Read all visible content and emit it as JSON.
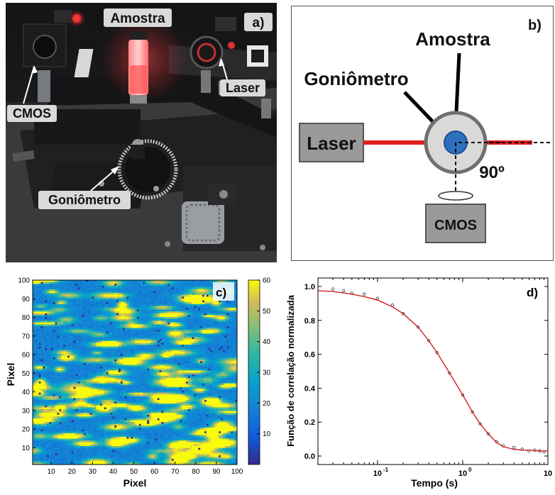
{
  "panels": {
    "a": {
      "letter": "a)",
      "labels": {
        "sample": "Amostra",
        "laser": "Laser",
        "camera": "CMOS",
        "goniometer": "Goniômetro"
      }
    },
    "b": {
      "letter": "b)",
      "labels": {
        "sample": "Amostra",
        "goniometer": "Goniômetro",
        "laser": "Laser",
        "angle": "90º",
        "camera": "CMOS"
      },
      "colors": {
        "beam": "#e02020",
        "sample": "#2e6fbf",
        "box_fill": "#9a9a9a"
      }
    },
    "c": {
      "letter": "c)",
      "xlabel": "Pixel",
      "ylabel": "Pixel",
      "x_ticks": [
        "10",
        "20",
        "30",
        "40",
        "50",
        "60",
        "70",
        "80",
        "90",
        "100"
      ],
      "y_ticks": [
        "10",
        "20",
        "30",
        "40",
        "50",
        "60",
        "70",
        "80",
        "90",
        "100"
      ],
      "colorbar_ticks": [
        "10",
        "20",
        "30",
        "40",
        "50",
        "60"
      ],
      "colormap": "parula"
    },
    "d": {
      "letter": "d)",
      "xlabel": "Tempo (s)",
      "ylabel": "Função de correlação normalizada",
      "x_ticks": [
        "10",
        "10",
        "10"
      ],
      "x_tick_exponents": [
        "-1",
        "0",
        ""
      ],
      "y_ticks": [
        "0.0",
        "0.2",
        "0.4",
        "0.6",
        "0.8",
        "1.0"
      ]
    }
  },
  "chart_data": [
    {
      "type": "heatmap",
      "title": "",
      "xlabel": "Pixel",
      "ylabel": "Pixel",
      "xlim": [
        1,
        100
      ],
      "ylim": [
        1,
        100
      ],
      "colorbar_range": [
        0,
        60
      ],
      "colormap": "parula",
      "grid": false
    },
    {
      "type": "scatter",
      "title": "",
      "xlabel": "Tempo (s)",
      "ylabel": "Função de correlação normalizada",
      "x_scale": "log",
      "xlim": [
        0.02,
        10
      ],
      "ylim": [
        -0.05,
        1.05
      ],
      "grid": false,
      "series": [
        {
          "style": "points",
          "color": "#333333",
          "x": [
            0.03,
            0.04,
            0.05,
            0.07,
            0.1,
            0.15,
            0.2,
            0.3,
            0.4,
            0.5,
            0.7,
            1.0,
            1.3,
            1.6,
            2.0,
            2.5,
            3.0,
            4.0,
            5.0,
            6.0,
            7.0,
            8.0,
            9.0
          ],
          "y": [
            0.985,
            0.975,
            0.96,
            0.955,
            0.93,
            0.89,
            0.84,
            0.76,
            0.68,
            0.61,
            0.49,
            0.36,
            0.26,
            0.19,
            0.13,
            0.085,
            0.06,
            0.05,
            0.04,
            0.03,
            0.035,
            0.03,
            0.025
          ]
        },
        {
          "style": "fit-line",
          "color": "#d22020",
          "x": [
            0.02,
            0.03,
            0.05,
            0.07,
            0.1,
            0.15,
            0.2,
            0.3,
            0.4,
            0.5,
            0.7,
            1.0,
            1.3,
            1.6,
            2.0,
            2.5,
            3.0,
            4.0,
            5.0,
            6.0,
            8.0,
            10.0
          ],
          "y": [
            0.975,
            0.97,
            0.955,
            0.94,
            0.92,
            0.88,
            0.84,
            0.76,
            0.68,
            0.61,
            0.49,
            0.36,
            0.26,
            0.19,
            0.13,
            0.08,
            0.055,
            0.04,
            0.035,
            0.035,
            0.03,
            0.03
          ]
        }
      ]
    }
  ]
}
